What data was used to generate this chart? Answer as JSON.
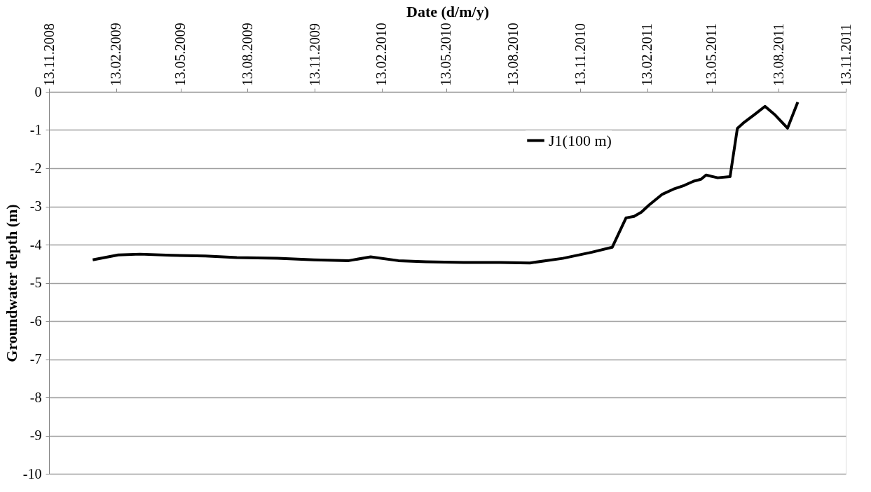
{
  "chart_data": {
    "type": "line",
    "xlabel": "Date (d/m/y)",
    "ylabel": "Groundwater depth (m)",
    "x": [
      "2009-01-12",
      "2009-02-16",
      "2009-03-18",
      "2009-04-30",
      "2009-06-16",
      "2009-07-29",
      "2009-09-23",
      "2009-11-12",
      "2009-12-30",
      "2010-01-29",
      "2010-03-08",
      "2010-04-15",
      "2010-06-06",
      "2010-07-26",
      "2010-09-05",
      "2010-10-20",
      "2010-11-29",
      "2010-12-27",
      "2011-01-15",
      "2011-01-26",
      "2011-02-05",
      "2011-02-16",
      "2011-03-06",
      "2011-03-21",
      "2011-04-05",
      "2011-04-18",
      "2011-04-28",
      "2011-05-05",
      "2011-05-21",
      "2011-06-07",
      "2011-06-17",
      "2011-06-25",
      "2011-07-11",
      "2011-07-25",
      "2011-08-07",
      "2011-08-25",
      "2011-09-08"
    ],
    "series": [
      {
        "name": "J1(100 m)",
        "color": "#000000",
        "values": [
          -4.4,
          -4.27,
          -4.25,
          -4.28,
          -4.3,
          -4.34,
          -4.36,
          -4.4,
          -4.42,
          -4.32,
          -4.42,
          -4.45,
          -4.47,
          -4.47,
          -4.48,
          -4.36,
          -4.2,
          -4.07,
          -3.3,
          -3.26,
          -3.15,
          -2.96,
          -2.68,
          -2.55,
          -2.45,
          -2.34,
          -2.29,
          -2.18,
          -2.25,
          -2.22,
          -0.96,
          -0.82,
          -0.59,
          -0.38,
          -0.59,
          -0.95,
          -0.27
        ]
      }
    ],
    "xlim": [
      "2008-11-13",
      "2011-11-13"
    ],
    "xticks": [
      {
        "value": "2008-11-13",
        "label": "13.11.2008"
      },
      {
        "value": "2009-02-13",
        "label": "13.02.2009"
      },
      {
        "value": "2009-05-13",
        "label": "13.05.2009"
      },
      {
        "value": "2009-08-13",
        "label": "13.08.2009"
      },
      {
        "value": "2009-11-13",
        "label": "13.11.2009"
      },
      {
        "value": "2010-02-13",
        "label": "13.02.2010"
      },
      {
        "value": "2010-05-13",
        "label": "13.05.2010"
      },
      {
        "value": "2010-08-13",
        "label": "13.08.2010"
      },
      {
        "value": "2010-11-13",
        "label": "13.11.2010"
      },
      {
        "value": "2011-02-13",
        "label": "13.02.2011"
      },
      {
        "value": "2011-05-13",
        "label": "13.05.2011"
      },
      {
        "value": "2011-08-13",
        "label": "13.08.2011"
      },
      {
        "value": "2011-11-13",
        "label": "13.11.2011"
      }
    ],
    "ylim": [
      -10,
      0
    ],
    "yticks": [
      -10,
      -9,
      -8,
      -7,
      -6,
      -5,
      -4,
      -3,
      -2,
      -1,
      0
    ],
    "grid": "y",
    "legend": "top right",
    "marker": "none",
    "line_style": "solid"
  }
}
